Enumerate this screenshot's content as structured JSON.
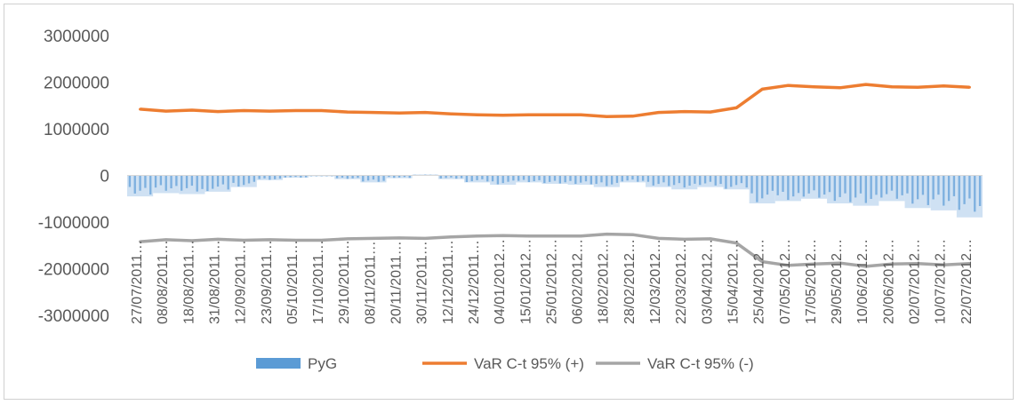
{
  "chart_data": {
    "type": "bar+line",
    "title": "",
    "xlabel": "",
    "ylabel": "",
    "ylim": [
      -3000000,
      3000000
    ],
    "yticks": [
      "3000000",
      "2000000",
      "1000000",
      "0",
      "-1000000",
      "-2000000",
      "-3000000"
    ],
    "categories": [
      "27/07/2011",
      "08/08/2011",
      "18/08/2011",
      "31/08/2011",
      "12/09/2011",
      "23/09/2011",
      "05/10/2011",
      "17/10/2011",
      "29/10/2011",
      "08/11/2011",
      "20/11/2011",
      "30/11/2011",
      "12/12/2011",
      "24/12/2011",
      "04/01/2012",
      "15/01/2012",
      "25/01/2012",
      "06/02/2012",
      "18/02/2012",
      "28/02/2012",
      "12/03/2012",
      "22/03/2012",
      "03/04/2012",
      "15/04/2012",
      "25/04/2012",
      "07/05/2012",
      "17/05/2012",
      "29/05/2012",
      "10/06/2012",
      "20/06/2012",
      "02/07/2012",
      "10/07/2012",
      "22/07/2012"
    ],
    "category_labels": [
      "27/07/2011…",
      "08/08/2011…",
      "18/08/2011…",
      "31/08/2011…",
      "12/09/2011…",
      "23/09/2011…",
      "05/10/2011…",
      "17/10/2011…",
      "29/10/2011…",
      "08/11/2011…",
      "20/11/2011…",
      "30/11/2011…",
      "12/12/2011…",
      "24/12/2011…",
      "04/01/2012…",
      "15/01/2012…",
      "25/01/2012…",
      "06/02/2012…",
      "18/02/2012…",
      "28/02/2012…",
      "12/03/2012…",
      "22/03/2012…",
      "03/04/2012…",
      "15/04/2012…",
      "25/04/2012…",
      "07/05/2012…",
      "17/05/2012…",
      "29/05/2012…",
      "10/06/2012…",
      "20/06/2012…",
      "02/07/2012…",
      "10/07/2012…",
      "22/07/2012…"
    ],
    "series": [
      {
        "name": "PyG",
        "kind": "bar",
        "color": "#5b9bd5",
        "values": [
          -450000,
          -380000,
          -400000,
          -350000,
          -250000,
          -100000,
          -50000,
          0,
          -80000,
          -150000,
          -60000,
          20000,
          -80000,
          -150000,
          -200000,
          -150000,
          -180000,
          -200000,
          -250000,
          -150000,
          -250000,
          -300000,
          -250000,
          -300000,
          -600000,
          -550000,
          -500000,
          -600000,
          -650000,
          -550000,
          -700000,
          -750000,
          -900000
        ]
      },
      {
        "name": "VaR  C-t 95% (+)",
        "kind": "line",
        "color": "#ed7d31",
        "values": [
          1420000,
          1380000,
          1400000,
          1370000,
          1390000,
          1380000,
          1390000,
          1390000,
          1360000,
          1350000,
          1340000,
          1350000,
          1320000,
          1300000,
          1290000,
          1300000,
          1300000,
          1300000,
          1260000,
          1270000,
          1350000,
          1370000,
          1360000,
          1450000,
          1850000,
          1930000,
          1900000,
          1880000,
          1950000,
          1900000,
          1890000,
          1920000,
          1890000
        ]
      },
      {
        "name": "VaR  C-t 95% (-)",
        "kind": "line",
        "color": "#a5a5a5",
        "values": [
          -1420000,
          -1380000,
          -1400000,
          -1370000,
          -1390000,
          -1380000,
          -1390000,
          -1390000,
          -1360000,
          -1350000,
          -1340000,
          -1350000,
          -1320000,
          -1300000,
          -1290000,
          -1300000,
          -1300000,
          -1300000,
          -1260000,
          -1270000,
          -1350000,
          -1370000,
          -1360000,
          -1450000,
          -1850000,
          -1930000,
          -1900000,
          -1880000,
          -1950000,
          -1900000,
          -1890000,
          -1920000,
          -1890000
        ]
      }
    ],
    "grid": false,
    "legend_position": "bottom"
  }
}
